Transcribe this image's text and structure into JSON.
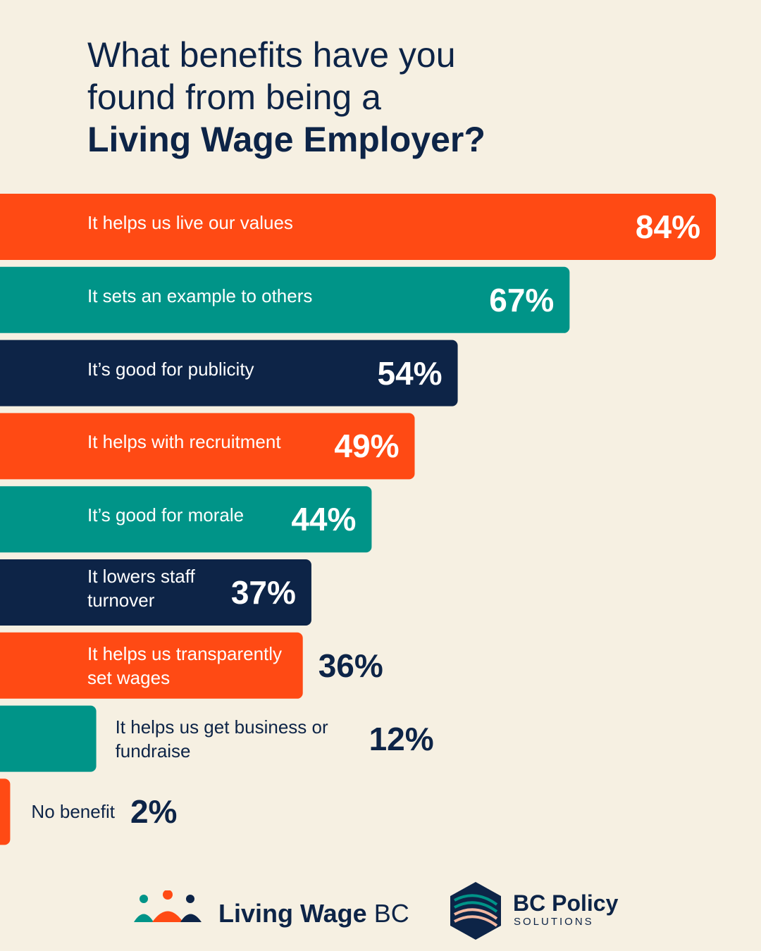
{
  "title": {
    "line1": "What benefits have you",
    "line2": "found from being a",
    "line3": "Living Wage Employer?"
  },
  "chart_data": {
    "type": "bar",
    "orientation": "horizontal",
    "categories": [
      "It helps us live our values",
      "It sets an example to others",
      "It’s good for publicity",
      "It helps with recruitment",
      "It’s good for morale",
      "It lowers staff turnover",
      "It helps us transparently set wages",
      "It helps us get business or fundraise",
      "No benefit"
    ],
    "values": [
      84,
      67,
      54,
      49,
      44,
      37,
      36,
      12,
      2
    ],
    "value_labels": [
      "84%",
      "67%",
      "54%",
      "49%",
      "44%",
      "37%",
      "36%",
      "12%",
      "2%"
    ],
    "colors": [
      "#FF4A14",
      "#009488",
      "#0D2447",
      "#FF4A14",
      "#009488",
      "#0D2447",
      "#FF4A14",
      "#009488",
      "#FF4A14"
    ],
    "xlim": [
      0,
      100
    ],
    "grid": false,
    "legend": "none"
  },
  "footer": {
    "logo1_bold": "Living Wage",
    "logo1_light": "BC",
    "logo2_line1": "BC Policy",
    "logo2_line2": "SOLUTIONS"
  }
}
